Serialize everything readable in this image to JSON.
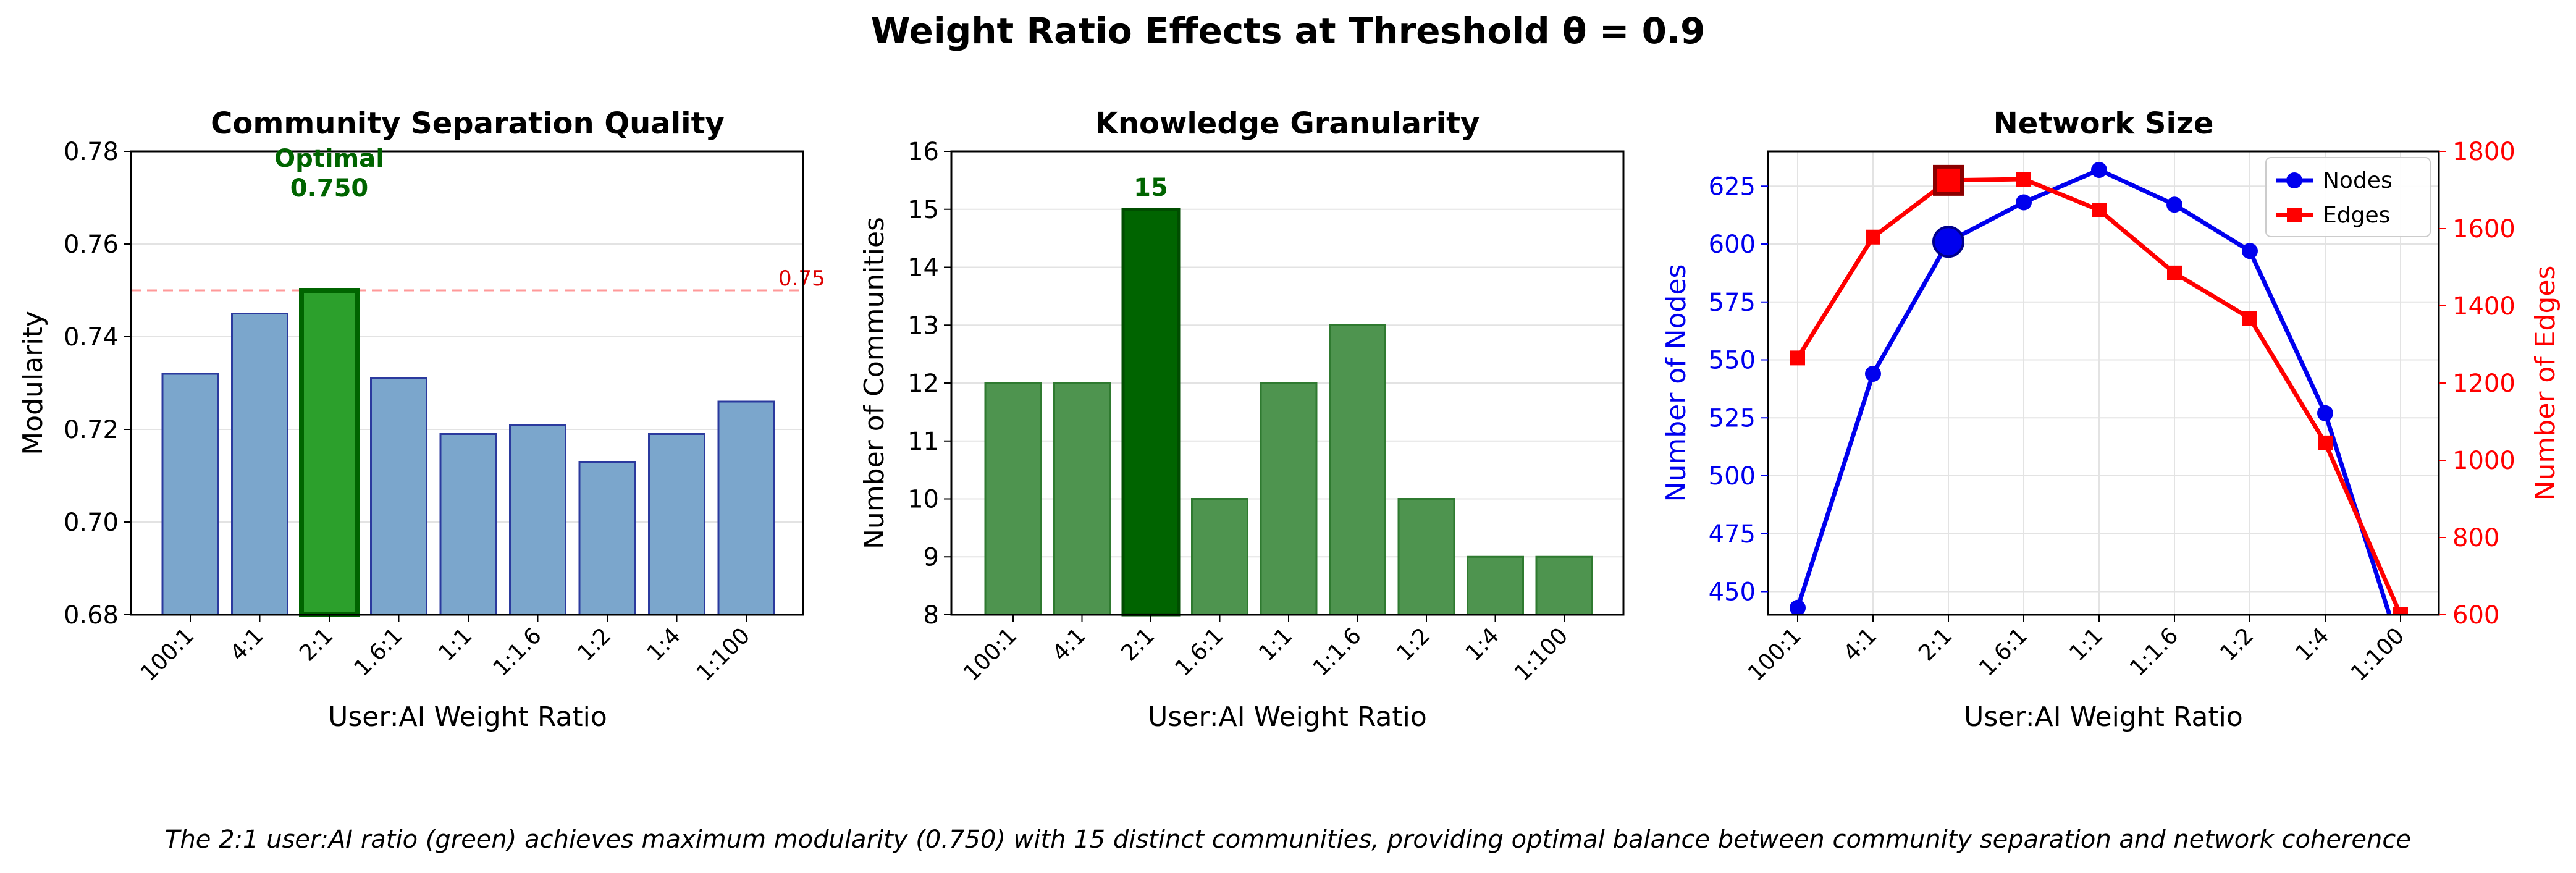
{
  "figure": {
    "title": "Weight Ratio Effects at Threshold θ = 0.9",
    "caption": "The 2:1 user:AI ratio (green) achieves maximum modularity (0.750) with 15 distinct communities, providing optimal balance between community separation and network coherence"
  },
  "chart_data": [
    {
      "type": "bar",
      "title": "Community Separation Quality",
      "xlabel": "User:AI Weight Ratio",
      "ylabel": "Modularity",
      "categories": [
        "100:1",
        "4:1",
        "2:1",
        "1.6:1",
        "1:1",
        "1:1.6",
        "1:2",
        "1:4",
        "1:100"
      ],
      "values": [
        0.732,
        0.745,
        0.75,
        0.731,
        0.719,
        0.721,
        0.713,
        0.719,
        0.726
      ],
      "ylim": [
        0.68,
        0.78
      ],
      "yticks": [
        "0.68",
        "0.70",
        "0.72",
        "0.74",
        "0.76",
        "0.78"
      ],
      "highlight_index": 2,
      "reference_line": {
        "value": 0.75,
        "label": "0.75",
        "color": "#ff9999"
      },
      "annotation": {
        "line1": "Optimal",
        "line2": "0.750",
        "color": "#006400"
      },
      "colors": {
        "bar": "#7ba6cc",
        "bar_edge": "#2b3a9e",
        "highlight": "#2ca02c",
        "highlight_edge": "#006400"
      },
      "grid": "y"
    },
    {
      "type": "bar",
      "title": "Knowledge Granularity",
      "xlabel": "User:AI Weight Ratio",
      "ylabel": "Number of Communities",
      "categories": [
        "100:1",
        "4:1",
        "2:1",
        "1.6:1",
        "1:1",
        "1:1.6",
        "1:2",
        "1:4",
        "1:100"
      ],
      "values": [
        12,
        12,
        15,
        10,
        12,
        13,
        10,
        9,
        9
      ],
      "ylim": [
        8,
        16
      ],
      "yticks": [
        "8",
        "9",
        "10",
        "11",
        "12",
        "13",
        "14",
        "15",
        "16"
      ],
      "highlight_index": 2,
      "annotation": {
        "label": "15",
        "color": "#006400"
      },
      "colors": {
        "bar": "#4e944f",
        "bar_edge": "#2f7a30",
        "highlight": "#006400",
        "highlight_edge": "#004d00"
      },
      "grid": "y"
    },
    {
      "type": "line",
      "title": "Network Size",
      "xlabel": "User:AI Weight Ratio",
      "ylabel": "Number of Nodes",
      "y2label": "Number of Edges",
      "categories": [
        "100:1",
        "4:1",
        "2:1",
        "1.6:1",
        "1:1",
        "1:1.6",
        "1:2",
        "1:4",
        "1:100"
      ],
      "ylim": [
        440,
        640
      ],
      "y2lim": [
        600,
        1800
      ],
      "yticks": [
        "450",
        "475",
        "500",
        "525",
        "550",
        "575",
        "600",
        "625"
      ],
      "y2ticks": [
        "600",
        "800",
        "1000",
        "1200",
        "1400",
        "1600",
        "1800"
      ],
      "series": [
        {
          "name": "Nodes",
          "axis": "left",
          "marker": "circle",
          "color": "#0000ee",
          "values": [
            443,
            544,
            601,
            618,
            632,
            617,
            597,
            527,
            425
          ]
        },
        {
          "name": "Edges",
          "axis": "right",
          "marker": "square",
          "color": "#ff0000",
          "values": [
            1265,
            1578,
            1725,
            1728,
            1648,
            1485,
            1368,
            1045,
            600
          ]
        }
      ],
      "highlight_index": 2,
      "legend": "top-right",
      "grid": "both"
    }
  ]
}
